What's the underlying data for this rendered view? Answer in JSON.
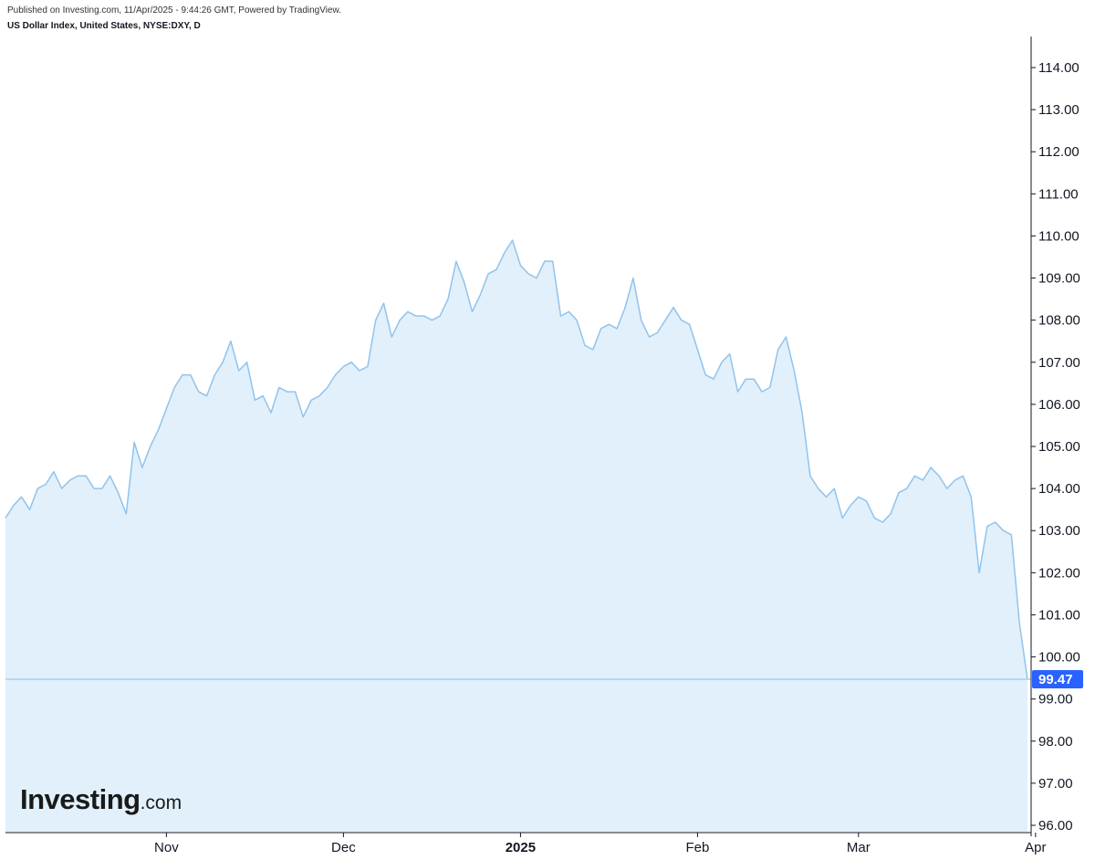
{
  "header": {
    "published": "Published on Investing.com, 11/Apr/2025 - 9:44:26 GMT, Powered by TradingView.",
    "symbol": "US Dollar Index, United States, NYSE:DXY, D"
  },
  "logo": {
    "brand": "Investing",
    "suffix": ".com"
  },
  "colors": {
    "line": "#90c3ee",
    "fill": "#e1f0fa",
    "price_badge": "#2962ff",
    "price_line": "#9fc6ee",
    "axis": "#131722"
  },
  "chart_data": {
    "type": "area",
    "title": "US Dollar Index, United States, NYSE:DXY, D",
    "ylim": [
      95.8,
      114.5
    ],
    "y_ticks": [
      "96.00",
      "97.00",
      "98.00",
      "99.00",
      "100.00",
      "101.00",
      "102.00",
      "103.00",
      "104.00",
      "105.00",
      "106.00",
      "107.00",
      "108.00",
      "109.00",
      "110.00",
      "111.00",
      "112.00",
      "113.00",
      "114.00"
    ],
    "x_ticks": [
      {
        "label": "Nov",
        "x": 20,
        "bold": false
      },
      {
        "label": "Dec",
        "x": 42,
        "bold": false
      },
      {
        "label": "2025",
        "x": 64,
        "bold": true
      },
      {
        "label": "Feb",
        "x": 86,
        "bold": false
      },
      {
        "label": "Mar",
        "x": 106,
        "bold": false
      },
      {
        "label": "Apr",
        "x": 128,
        "bold": false
      }
    ],
    "last_value": "99.47",
    "series": [
      {
        "values": [
          103.3,
          103.6,
          103.8,
          103.5,
          104.0,
          104.1,
          104.4,
          104.0,
          104.2,
          104.3,
          104.3,
          104.0,
          104.0,
          104.3,
          103.9,
          103.4,
          105.1,
          104.5,
          105.0,
          105.4,
          105.9,
          106.4,
          106.7,
          106.7,
          106.3,
          106.2,
          106.7,
          107.0,
          107.5,
          106.8,
          107.0,
          106.1,
          106.2,
          105.8,
          106.4,
          106.3,
          106.3,
          105.7,
          106.1,
          106.2,
          106.4,
          106.7,
          106.9,
          107.0,
          106.8,
          106.9,
          108.0,
          108.4,
          107.6,
          108.0,
          108.2,
          108.1,
          108.1,
          108.0,
          108.1,
          108.5,
          109.4,
          108.9,
          108.2,
          108.6,
          109.1,
          109.2,
          109.6,
          109.9,
          109.3,
          109.1,
          109.0,
          109.4,
          109.4,
          108.1,
          108.2,
          108.0,
          107.4,
          107.3,
          107.8,
          107.9,
          107.8,
          108.3,
          109.0,
          108.0,
          107.6,
          107.7,
          108.0,
          108.3,
          108.0,
          107.9,
          107.3,
          106.7,
          106.6,
          107.0,
          107.2,
          106.3,
          106.6,
          106.6,
          106.3,
          106.4,
          107.3,
          107.6,
          106.8,
          105.8,
          104.3,
          104.0,
          103.8,
          104.0,
          103.3,
          103.6,
          103.8,
          103.7,
          103.3,
          103.2,
          103.4,
          103.9,
          104.0,
          104.3,
          104.2,
          104.5,
          104.3,
          104.0,
          104.2,
          104.3,
          103.8,
          102.0,
          103.1,
          103.2,
          103.0,
          102.9,
          100.8,
          99.47
        ]
      }
    ]
  }
}
